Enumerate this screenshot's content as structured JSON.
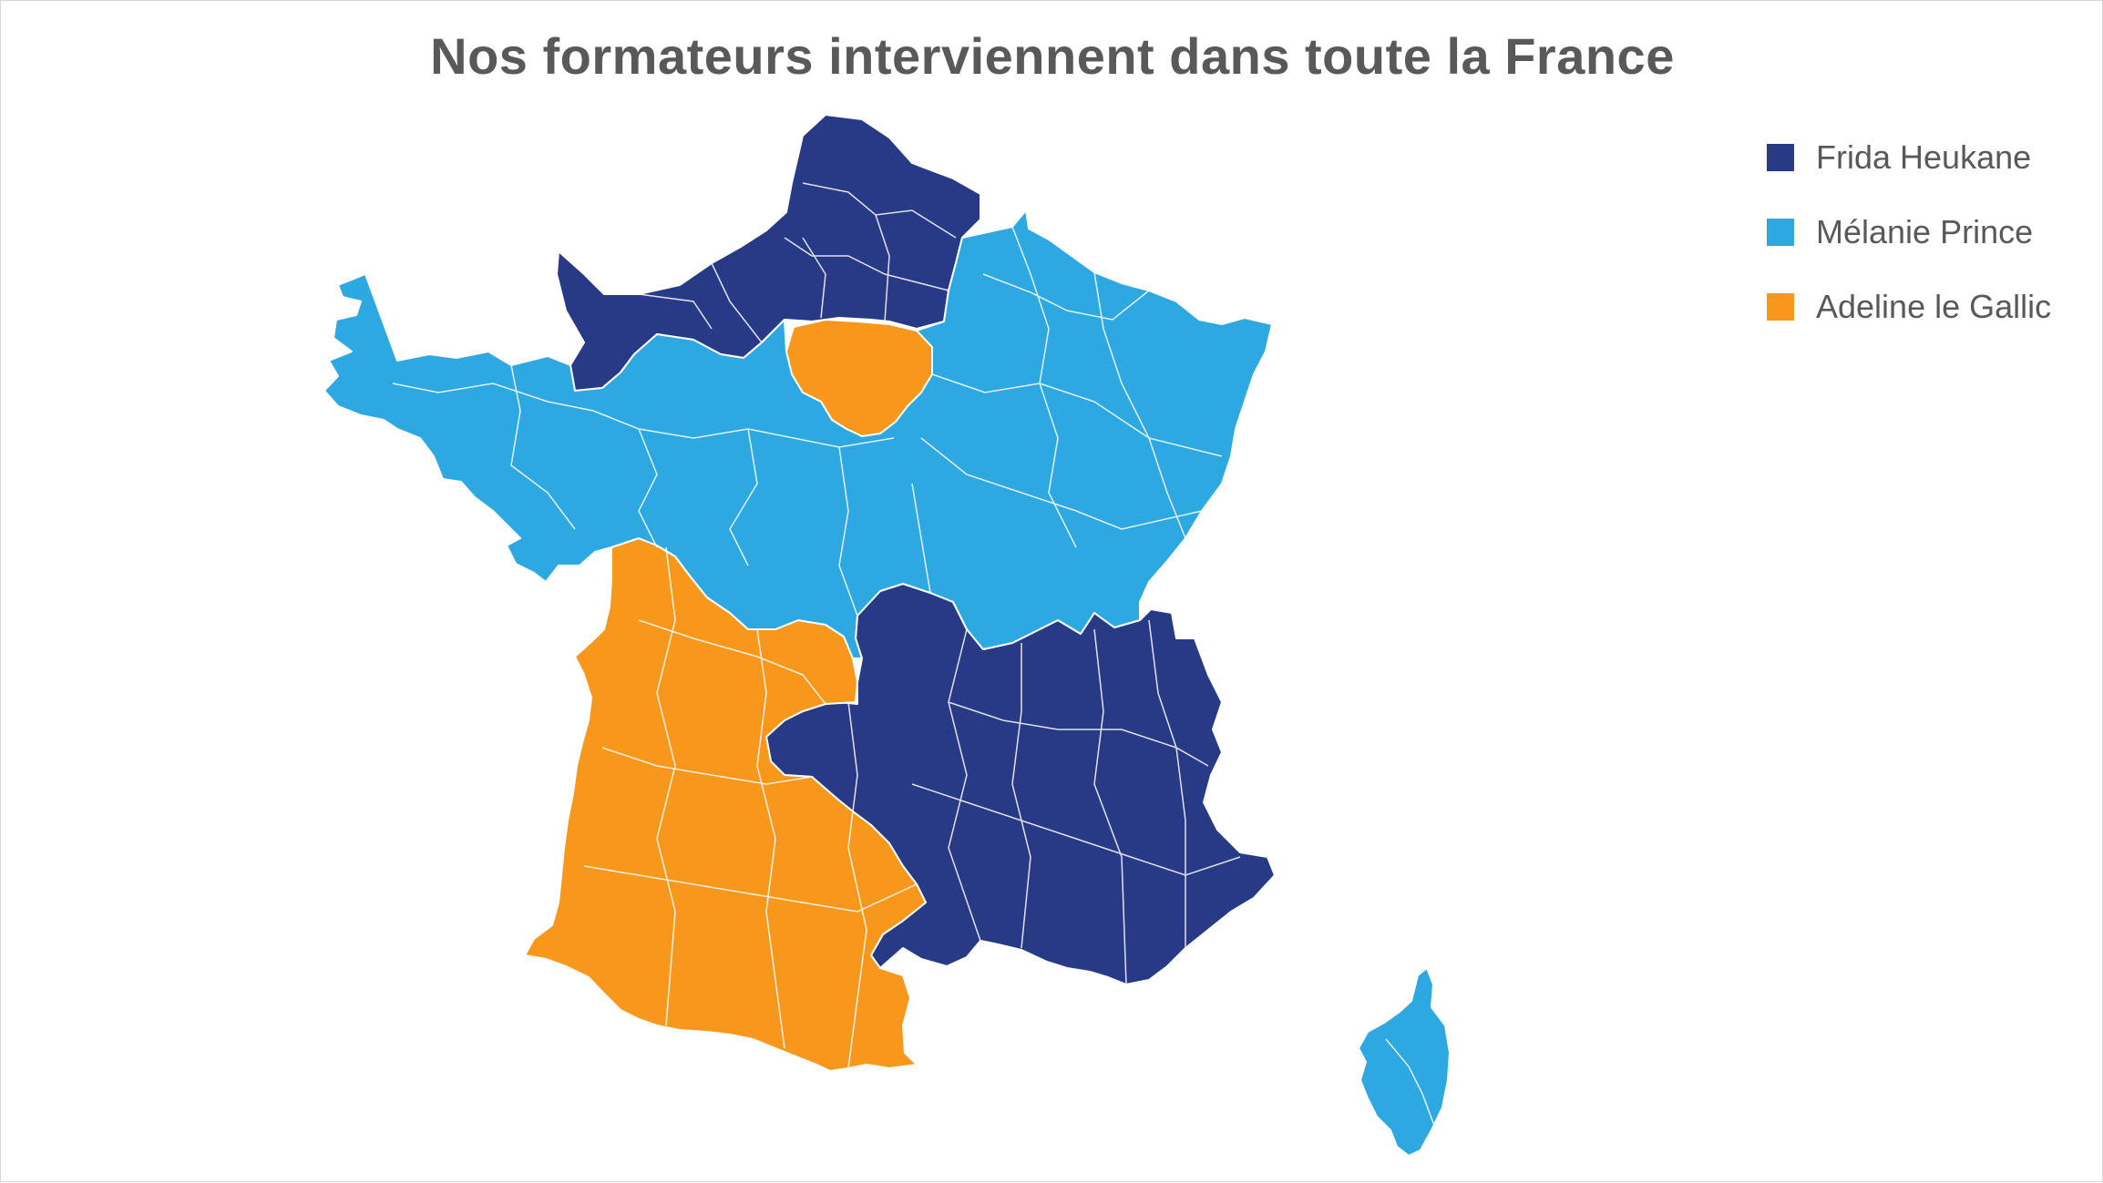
{
  "title": "Nos formateurs interviennent dans toute la France",
  "legend": [
    {
      "label": "Frida Heukane",
      "color": "#283a85"
    },
    {
      "label": "Mélanie Prince",
      "color": "#2ea8e0"
    },
    {
      "label": "Adeline le Gallic",
      "color": "#f7981d"
    }
  ]
}
